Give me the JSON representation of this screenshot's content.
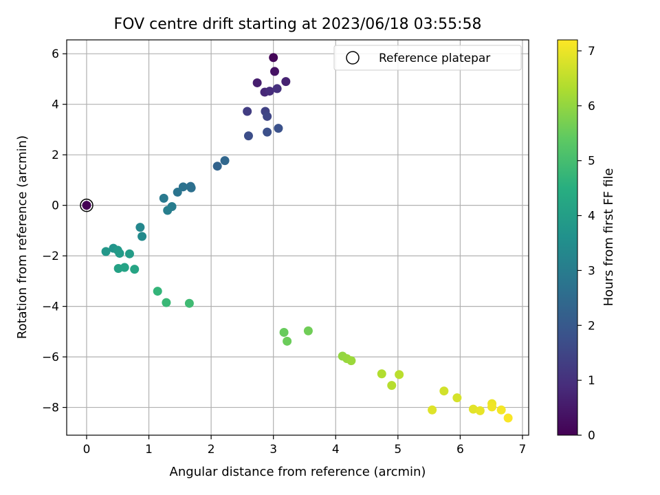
{
  "chart_data": {
    "type": "scatter",
    "title": "FOV centre drift starting at 2023/06/18 03:55:58",
    "xlabel": "Angular distance from reference (arcmin)",
    "ylabel": "Rotation from reference (arcmin)",
    "xlim": [
      -0.32,
      7.1
    ],
    "ylim": [
      -9.1,
      6.55
    ],
    "xticks": [
      0,
      1,
      2,
      3,
      4,
      5,
      6,
      7
    ],
    "yticks": [
      -8,
      -6,
      -4,
      -2,
      0,
      2,
      4,
      6
    ],
    "grid": true,
    "legend": {
      "placement": "top-right",
      "entries": [
        "Reference platepar"
      ]
    },
    "colorbar": {
      "label": "Hours from first FF file",
      "range": [
        0,
        7.2
      ],
      "ticks": [
        0,
        1,
        2,
        3,
        4,
        5,
        6,
        7
      ],
      "colormap": "viridis"
    },
    "reference": {
      "x": 0,
      "y": 0
    },
    "points": [
      {
        "x": 0.0,
        "y": 0.0,
        "h": 0.0
      },
      {
        "x": 3.0,
        "y": 5.85,
        "h": 0.1
      },
      {
        "x": 3.02,
        "y": 5.3,
        "h": 0.35
      },
      {
        "x": 2.74,
        "y": 4.85,
        "h": 0.6
      },
      {
        "x": 3.2,
        "y": 4.9,
        "h": 0.7
      },
      {
        "x": 2.86,
        "y": 4.48,
        "h": 0.8
      },
      {
        "x": 2.94,
        "y": 4.52,
        "h": 0.9
      },
      {
        "x": 3.06,
        "y": 4.62,
        "h": 1.0
      },
      {
        "x": 2.58,
        "y": 3.72,
        "h": 1.3
      },
      {
        "x": 2.87,
        "y": 3.72,
        "h": 1.4
      },
      {
        "x": 2.9,
        "y": 3.52,
        "h": 1.5
      },
      {
        "x": 2.6,
        "y": 2.75,
        "h": 1.7
      },
      {
        "x": 2.9,
        "y": 2.9,
        "h": 1.75
      },
      {
        "x": 3.08,
        "y": 3.05,
        "h": 1.8
      },
      {
        "x": 2.1,
        "y": 1.55,
        "h": 2.3
      },
      {
        "x": 2.22,
        "y": 1.77,
        "h": 2.4
      },
      {
        "x": 1.67,
        "y": 0.75,
        "h": 2.6
      },
      {
        "x": 1.68,
        "y": 0.69,
        "h": 2.65
      },
      {
        "x": 1.55,
        "y": 0.73,
        "h": 2.7
      },
      {
        "x": 1.46,
        "y": 0.52,
        "h": 2.75
      },
      {
        "x": 1.24,
        "y": 0.28,
        "h": 2.9
      },
      {
        "x": 1.37,
        "y": -0.05,
        "h": 3.0
      },
      {
        "x": 1.3,
        "y": -0.2,
        "h": 3.05
      },
      {
        "x": 0.86,
        "y": -0.87,
        "h": 3.3
      },
      {
        "x": 0.89,
        "y": -1.23,
        "h": 3.4
      },
      {
        "x": 0.43,
        "y": -1.7,
        "h": 3.7
      },
      {
        "x": 0.31,
        "y": -1.83,
        "h": 3.8
      },
      {
        "x": 0.5,
        "y": -1.78,
        "h": 3.85
      },
      {
        "x": 0.53,
        "y": -1.9,
        "h": 3.9
      },
      {
        "x": 0.69,
        "y": -1.92,
        "h": 3.95
      },
      {
        "x": 0.51,
        "y": -2.5,
        "h": 4.1
      },
      {
        "x": 0.61,
        "y": -2.46,
        "h": 4.15
      },
      {
        "x": 0.77,
        "y": -2.53,
        "h": 4.2
      },
      {
        "x": 1.14,
        "y": -3.4,
        "h": 4.7
      },
      {
        "x": 1.28,
        "y": -3.85,
        "h": 4.8
      },
      {
        "x": 1.65,
        "y": -3.88,
        "h": 4.9
      },
      {
        "x": 3.17,
        "y": -5.03,
        "h": 5.5
      },
      {
        "x": 3.22,
        "y": -5.38,
        "h": 5.55
      },
      {
        "x": 3.56,
        "y": -4.97,
        "h": 5.6
      },
      {
        "x": 4.11,
        "y": -5.97,
        "h": 6.0
      },
      {
        "x": 4.18,
        "y": -6.07,
        "h": 6.05
      },
      {
        "x": 4.25,
        "y": -6.15,
        "h": 6.1
      },
      {
        "x": 4.74,
        "y": -6.67,
        "h": 6.35
      },
      {
        "x": 4.9,
        "y": -7.13,
        "h": 6.4
      },
      {
        "x": 5.02,
        "y": -6.7,
        "h": 6.45
      },
      {
        "x": 5.74,
        "y": -7.35,
        "h": 6.7
      },
      {
        "x": 5.95,
        "y": -7.62,
        "h": 6.75
      },
      {
        "x": 5.55,
        "y": -8.1,
        "h": 6.85
      },
      {
        "x": 6.21,
        "y": -8.07,
        "h": 6.9
      },
      {
        "x": 6.32,
        "y": -8.13,
        "h": 6.95
      },
      {
        "x": 6.51,
        "y": -7.85,
        "h": 7.0
      },
      {
        "x": 6.51,
        "y": -7.98,
        "h": 7.05
      },
      {
        "x": 6.66,
        "y": -8.1,
        "h": 7.1
      },
      {
        "x": 6.77,
        "y": -8.42,
        "h": 7.15
      }
    ]
  }
}
